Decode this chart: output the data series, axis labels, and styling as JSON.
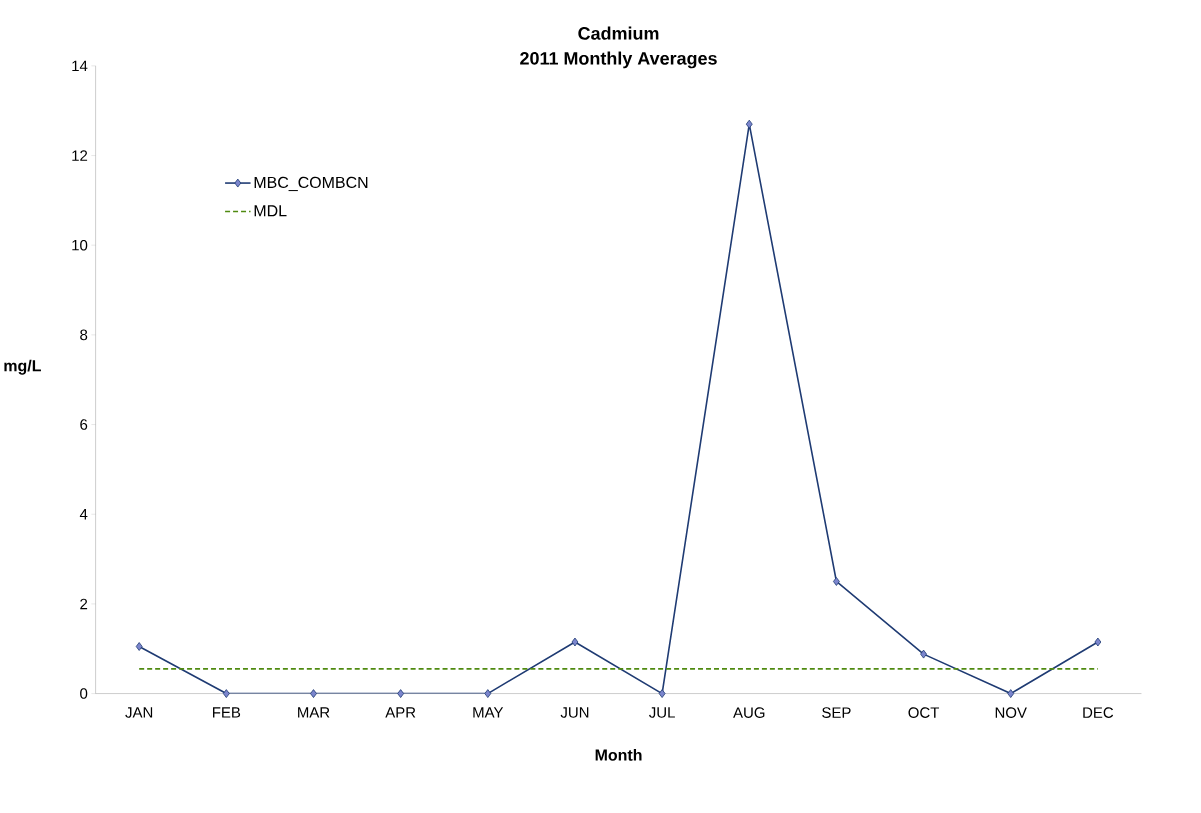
{
  "chart_data": {
    "type": "line",
    "title": "Cadmium",
    "subtitle": "2011 Monthly Averages",
    "xlabel": "Month",
    "ylabel": "mg/L",
    "categories": [
      "JAN",
      "FEB",
      "MAR",
      "APR",
      "MAY",
      "JUN",
      "JUL",
      "AUG",
      "SEP",
      "OCT",
      "NOV",
      "DEC"
    ],
    "ylim": [
      0,
      14
    ],
    "yticks": [
      0,
      2,
      4,
      6,
      8,
      10,
      12,
      14
    ],
    "grid": false,
    "legend": "top left",
    "series": [
      {
        "name": "MBC_COMBCN",
        "color": "#1f3b73",
        "marker": "diamond",
        "line_style": "solid",
        "values": [
          1.05,
          0,
          0,
          0,
          0,
          1.15,
          0,
          12.7,
          2.5,
          0.88,
          0,
          1.15
        ]
      },
      {
        "name": "MDL",
        "color": "#4f8a10",
        "marker": "none",
        "line_style": "dashed",
        "values": [
          0.55,
          0.55,
          0.55,
          0.55,
          0.55,
          0.55,
          0.55,
          0.55,
          0.55,
          0.55,
          0.55,
          0.55
        ]
      }
    ]
  }
}
